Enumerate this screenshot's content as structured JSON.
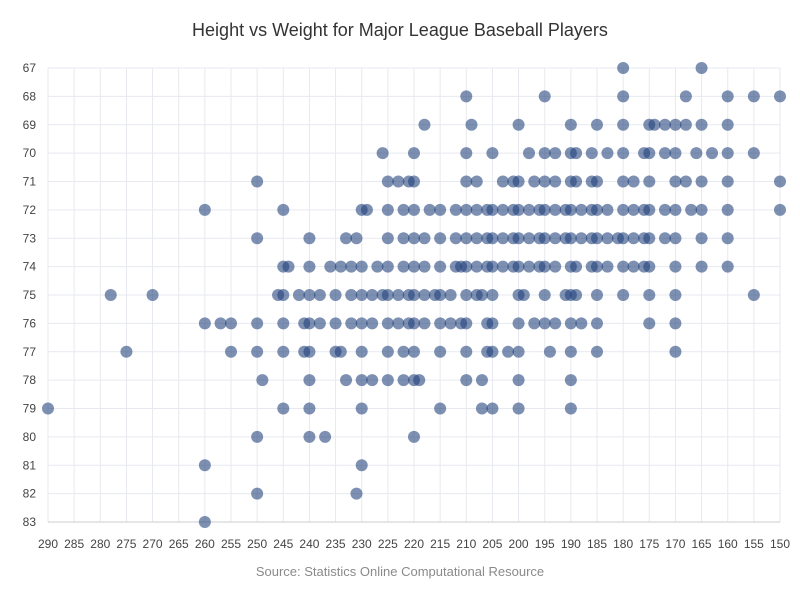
{
  "chart_data": {
    "type": "scatter",
    "title": "Height vs Weight for Major League Baseball Players",
    "source": "Source: Statistics Online Computational Resource",
    "xlabel": "",
    "ylabel": "",
    "x_axis": {
      "min": 150,
      "max": 290,
      "reversed": true,
      "ticks": [
        290,
        285,
        280,
        275,
        270,
        265,
        260,
        255,
        250,
        245,
        240,
        235,
        230,
        225,
        220,
        215,
        210,
        205,
        200,
        195,
        190,
        185,
        180,
        175,
        170,
        165,
        160,
        155,
        150
      ]
    },
    "y_axis": {
      "min": 67,
      "max": 83,
      "reversed": true,
      "ticks": [
        67,
        68,
        69,
        70,
        71,
        72,
        73,
        74,
        75,
        76,
        77,
        78,
        79,
        80,
        81,
        82,
        83
      ]
    },
    "grid": true,
    "legend": "none",
    "colors": {
      "point": "#1f3f7a",
      "grid": "#e6e9ef",
      "axis": "#c8ccd2"
    },
    "points": [
      [
        180,
        67
      ],
      [
        165,
        67
      ],
      [
        210,
        68
      ],
      [
        195,
        68
      ],
      [
        180,
        68
      ],
      [
        168,
        68
      ],
      [
        160,
        68
      ],
      [
        155,
        68
      ],
      [
        150,
        68
      ],
      [
        218,
        69
      ],
      [
        209,
        69
      ],
      [
        200,
        69
      ],
      [
        190,
        69
      ],
      [
        185,
        69
      ],
      [
        180,
        69
      ],
      [
        175,
        69
      ],
      [
        174,
        69
      ],
      [
        172,
        69
      ],
      [
        170,
        69
      ],
      [
        168,
        69
      ],
      [
        165,
        69
      ],
      [
        160,
        69
      ],
      [
        226,
        70
      ],
      [
        220,
        70
      ],
      [
        210,
        70
      ],
      [
        205,
        70
      ],
      [
        198,
        70
      ],
      [
        195,
        70
      ],
      [
        193,
        70
      ],
      [
        190,
        70
      ],
      [
        189,
        70
      ],
      [
        186,
        70
      ],
      [
        183,
        70
      ],
      [
        180,
        70
      ],
      [
        176,
        70
      ],
      [
        175,
        70
      ],
      [
        172,
        70
      ],
      [
        170,
        70
      ],
      [
        166,
        70
      ],
      [
        163,
        70
      ],
      [
        160,
        70
      ],
      [
        155,
        70
      ],
      [
        250,
        71
      ],
      [
        225,
        71
      ],
      [
        223,
        71
      ],
      [
        221,
        71
      ],
      [
        220,
        71
      ],
      [
        210,
        71
      ],
      [
        208,
        71
      ],
      [
        203,
        71
      ],
      [
        201,
        71
      ],
      [
        200,
        71
      ],
      [
        197,
        71
      ],
      [
        195,
        71
      ],
      [
        193,
        71
      ],
      [
        190,
        71
      ],
      [
        189,
        71
      ],
      [
        186,
        71
      ],
      [
        185,
        71
      ],
      [
        180,
        71
      ],
      [
        178,
        71
      ],
      [
        175,
        71
      ],
      [
        170,
        71
      ],
      [
        168,
        71
      ],
      [
        165,
        71
      ],
      [
        160,
        71
      ],
      [
        150,
        71
      ],
      [
        260,
        72
      ],
      [
        245,
        72
      ],
      [
        230,
        72
      ],
      [
        229,
        72
      ],
      [
        225,
        72
      ],
      [
        222,
        72
      ],
      [
        220,
        72
      ],
      [
        217,
        72
      ],
      [
        215,
        72
      ],
      [
        212,
        72
      ],
      [
        210,
        72
      ],
      [
        208,
        72
      ],
      [
        206,
        72
      ],
      [
        205,
        72
      ],
      [
        203,
        72
      ],
      [
        201,
        72
      ],
      [
        200,
        72
      ],
      [
        198,
        72
      ],
      [
        196,
        72
      ],
      [
        195,
        72
      ],
      [
        193,
        72
      ],
      [
        191,
        72
      ],
      [
        190,
        72
      ],
      [
        188,
        72
      ],
      [
        186,
        72
      ],
      [
        185,
        72
      ],
      [
        183,
        72
      ],
      [
        180,
        72
      ],
      [
        178,
        72
      ],
      [
        176,
        72
      ],
      [
        175,
        72
      ],
      [
        172,
        72
      ],
      [
        170,
        72
      ],
      [
        167,
        72
      ],
      [
        165,
        72
      ],
      [
        160,
        72
      ],
      [
        150,
        72
      ],
      [
        250,
        73
      ],
      [
        240,
        73
      ],
      [
        233,
        73
      ],
      [
        231,
        73
      ],
      [
        225,
        73
      ],
      [
        222,
        73
      ],
      [
        220,
        73
      ],
      [
        218,
        73
      ],
      [
        215,
        73
      ],
      [
        212,
        73
      ],
      [
        210,
        73
      ],
      [
        208,
        73
      ],
      [
        206,
        73
      ],
      [
        205,
        73
      ],
      [
        203,
        73
      ],
      [
        201,
        73
      ],
      [
        200,
        73
      ],
      [
        198,
        73
      ],
      [
        196,
        73
      ],
      [
        195,
        73
      ],
      [
        193,
        73
      ],
      [
        191,
        73
      ],
      [
        190,
        73
      ],
      [
        188,
        73
      ],
      [
        186,
        73
      ],
      [
        185,
        73
      ],
      [
        183,
        73
      ],
      [
        181,
        73
      ],
      [
        180,
        73
      ],
      [
        178,
        73
      ],
      [
        176,
        73
      ],
      [
        175,
        73
      ],
      [
        172,
        73
      ],
      [
        170,
        73
      ],
      [
        165,
        73
      ],
      [
        160,
        73
      ],
      [
        245,
        74
      ],
      [
        244,
        74
      ],
      [
        240,
        74
      ],
      [
        236,
        74
      ],
      [
        234,
        74
      ],
      [
        232,
        74
      ],
      [
        230,
        74
      ],
      [
        227,
        74
      ],
      [
        225,
        74
      ],
      [
        222,
        74
      ],
      [
        220,
        74
      ],
      [
        218,
        74
      ],
      [
        215,
        74
      ],
      [
        212,
        74
      ],
      [
        211,
        74
      ],
      [
        210,
        74
      ],
      [
        208,
        74
      ],
      [
        206,
        74
      ],
      [
        205,
        74
      ],
      [
        203,
        74
      ],
      [
        201,
        74
      ],
      [
        200,
        74
      ],
      [
        198,
        74
      ],
      [
        196,
        74
      ],
      [
        195,
        74
      ],
      [
        193,
        74
      ],
      [
        190,
        74
      ],
      [
        189,
        74
      ],
      [
        186,
        74
      ],
      [
        185,
        74
      ],
      [
        183,
        74
      ],
      [
        180,
        74
      ],
      [
        178,
        74
      ],
      [
        176,
        74
      ],
      [
        175,
        74
      ],
      [
        170,
        74
      ],
      [
        165,
        74
      ],
      [
        160,
        74
      ],
      [
        278,
        75
      ],
      [
        270,
        75
      ],
      [
        246,
        75
      ],
      [
        245,
        75
      ],
      [
        242,
        75
      ],
      [
        240,
        75
      ],
      [
        238,
        75
      ],
      [
        235,
        75
      ],
      [
        232,
        75
      ],
      [
        230,
        75
      ],
      [
        228,
        75
      ],
      [
        226,
        75
      ],
      [
        225,
        75
      ],
      [
        223,
        75
      ],
      [
        221,
        75
      ],
      [
        220,
        75
      ],
      [
        218,
        75
      ],
      [
        216,
        75
      ],
      [
        215,
        75
      ],
      [
        213,
        75
      ],
      [
        210,
        75
      ],
      [
        208,
        75
      ],
      [
        207,
        75
      ],
      [
        205,
        75
      ],
      [
        200,
        75
      ],
      [
        199,
        75
      ],
      [
        195,
        75
      ],
      [
        191,
        75
      ],
      [
        190,
        75
      ],
      [
        189,
        75
      ],
      [
        185,
        75
      ],
      [
        180,
        75
      ],
      [
        175,
        75
      ],
      [
        170,
        75
      ],
      [
        155,
        75
      ],
      [
        260,
        76
      ],
      [
        257,
        76
      ],
      [
        255,
        76
      ],
      [
        250,
        76
      ],
      [
        245,
        76
      ],
      [
        241,
        76
      ],
      [
        240,
        76
      ],
      [
        238,
        76
      ],
      [
        235,
        76
      ],
      [
        232,
        76
      ],
      [
        230,
        76
      ],
      [
        228,
        76
      ],
      [
        225,
        76
      ],
      [
        223,
        76
      ],
      [
        221,
        76
      ],
      [
        220,
        76
      ],
      [
        218,
        76
      ],
      [
        215,
        76
      ],
      [
        213,
        76
      ],
      [
        211,
        76
      ],
      [
        210,
        76
      ],
      [
        206,
        76
      ],
      [
        205,
        76
      ],
      [
        200,
        76
      ],
      [
        197,
        76
      ],
      [
        195,
        76
      ],
      [
        193,
        76
      ],
      [
        190,
        76
      ],
      [
        188,
        76
      ],
      [
        185,
        76
      ],
      [
        175,
        76
      ],
      [
        170,
        76
      ],
      [
        275,
        77
      ],
      [
        255,
        77
      ],
      [
        250,
        77
      ],
      [
        245,
        77
      ],
      [
        241,
        77
      ],
      [
        240,
        77
      ],
      [
        235,
        77
      ],
      [
        234,
        77
      ],
      [
        230,
        77
      ],
      [
        225,
        77
      ],
      [
        222,
        77
      ],
      [
        220,
        77
      ],
      [
        215,
        77
      ],
      [
        210,
        77
      ],
      [
        206,
        77
      ],
      [
        205,
        77
      ],
      [
        202,
        77
      ],
      [
        200,
        77
      ],
      [
        194,
        77
      ],
      [
        190,
        77
      ],
      [
        185,
        77
      ],
      [
        170,
        77
      ],
      [
        249,
        78
      ],
      [
        240,
        78
      ],
      [
        233,
        78
      ],
      [
        230,
        78
      ],
      [
        228,
        78
      ],
      [
        225,
        78
      ],
      [
        222,
        78
      ],
      [
        220,
        78
      ],
      [
        219,
        78
      ],
      [
        210,
        78
      ],
      [
        207,
        78
      ],
      [
        200,
        78
      ],
      [
        190,
        78
      ],
      [
        290,
        79
      ],
      [
        245,
        79
      ],
      [
        240,
        79
      ],
      [
        230,
        79
      ],
      [
        215,
        79
      ],
      [
        207,
        79
      ],
      [
        205,
        79
      ],
      [
        200,
        79
      ],
      [
        190,
        79
      ],
      [
        250,
        80
      ],
      [
        240,
        80
      ],
      [
        237,
        80
      ],
      [
        220,
        80
      ],
      [
        260,
        81
      ],
      [
        230,
        81
      ],
      [
        250,
        82
      ],
      [
        231,
        82
      ],
      [
        260,
        83
      ]
    ]
  }
}
